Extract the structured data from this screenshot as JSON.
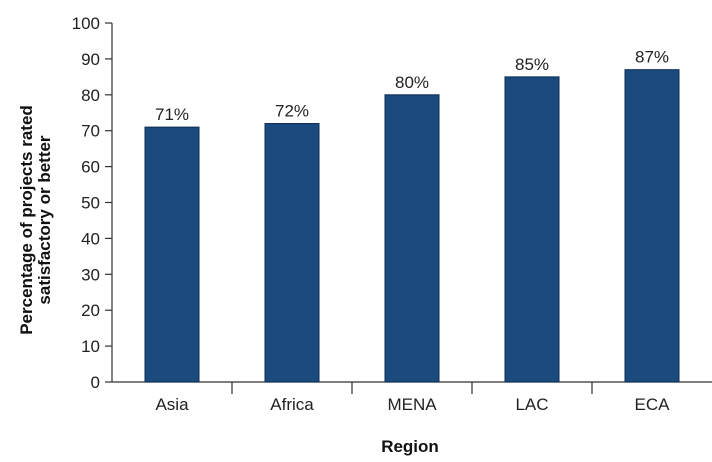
{
  "chart_data": {
    "type": "bar",
    "categories": [
      "Asia",
      "Africa",
      "MENA",
      "LAC",
      "ECA"
    ],
    "values": [
      71,
      72,
      80,
      85,
      87
    ],
    "data_labels": [
      "71%",
      "72%",
      "80%",
      "85%",
      "87%"
    ],
    "title": "",
    "xlabel": "Region",
    "ylabel_lines": [
      "Percentage of projects rated",
      "satisfactory or better"
    ],
    "ylim": [
      0,
      100
    ],
    "yticks": [
      0,
      10,
      20,
      30,
      40,
      50,
      60,
      70,
      80,
      90,
      100
    ],
    "grid": false,
    "legend": "none",
    "bar_color": "#1b4a7e",
    "axis_color": "#333333"
  }
}
